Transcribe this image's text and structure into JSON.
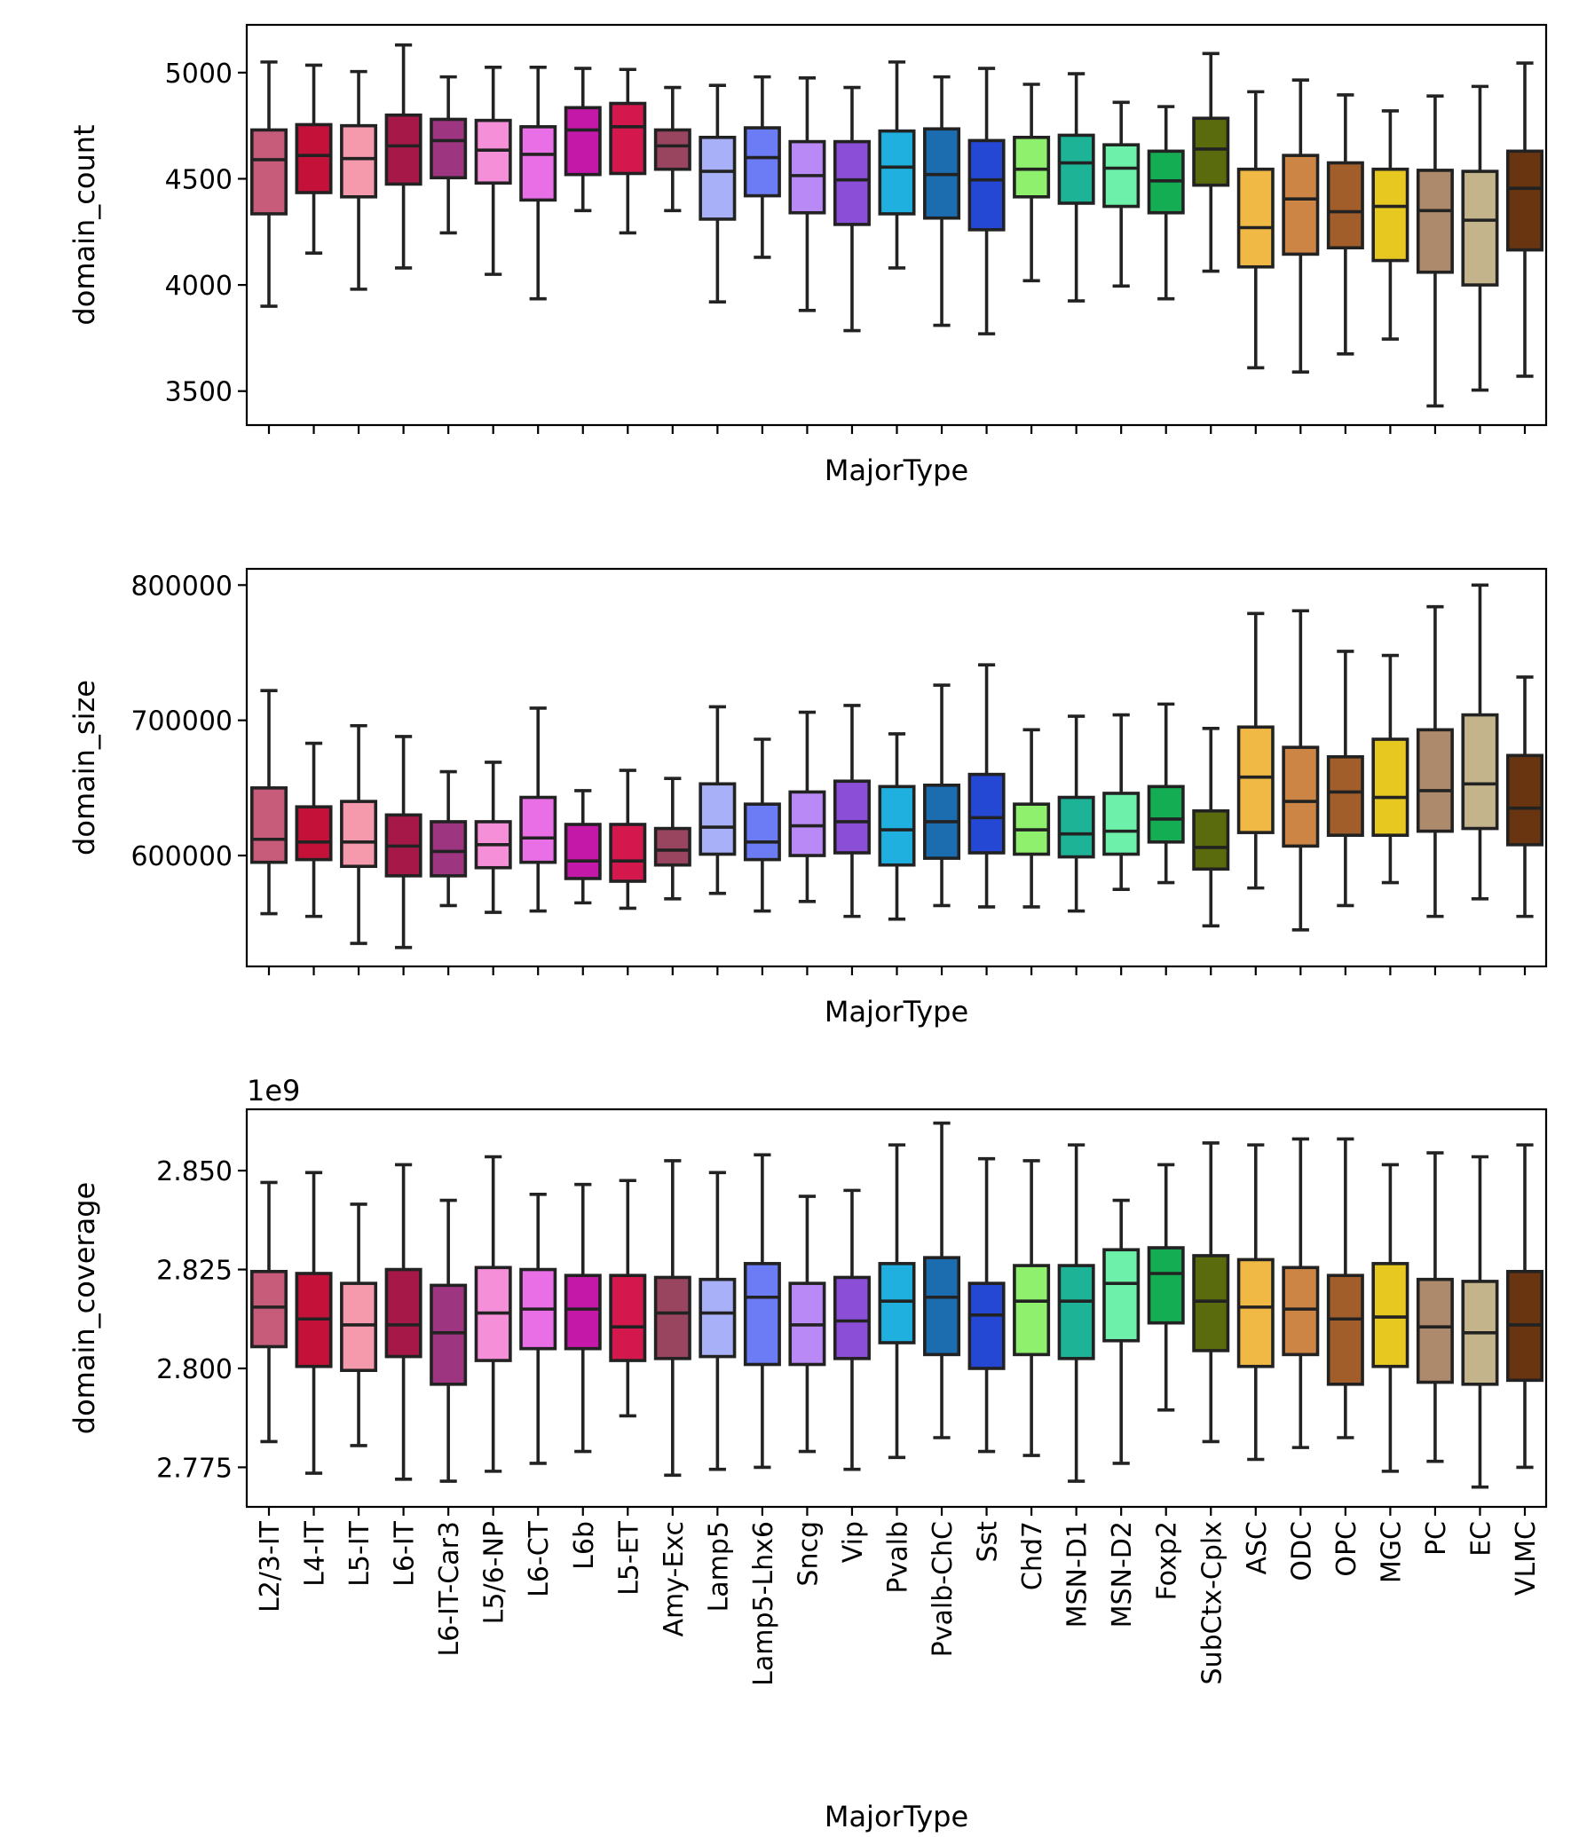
{
  "chart_data": {
    "type": "box",
    "categories": [
      "L2/3-IT",
      "L4-IT",
      "L5-IT",
      "L6-IT",
      "L6-IT-Car3",
      "L5/6-NP",
      "L6-CT",
      "L6b",
      "L5-ET",
      "Amy-Exc",
      "Lamp5",
      "Lamp5-Lhx6",
      "Sncg",
      "Vip",
      "Pvalb",
      "Pvalb-ChC",
      "Sst",
      "Chd7",
      "MSN-D1",
      "MSN-D2",
      "Foxp2",
      "SubCtx-Cplx",
      "ASC",
      "ODC",
      "OPC",
      "MGC",
      "PC",
      "EC",
      "VLMC"
    ],
    "colors": [
      "#c75b7a",
      "#c4113a",
      "#f59aad",
      "#a51848",
      "#9e3580",
      "#f590d8",
      "#e86fe6",
      "#c318a8",
      "#d4174c",
      "#9a4560",
      "#a8b1f7",
      "#6b7cf5",
      "#b98af5",
      "#8a4fd6",
      "#1fb0e0",
      "#1c6cb0",
      "#2448d4",
      "#8ef06c",
      "#1cb397",
      "#6cf0aa",
      "#15ad54",
      "#5a6b0e",
      "#f0b845",
      "#cc8545",
      "#a15e2a",
      "#e6c820",
      "#ad8a6b",
      "#c4b48c",
      "#693510"
    ],
    "xlabel": "MajorType",
    "panels": [
      {
        "ylabel": "domain_count",
        "ylim": [
          3340,
          5225
        ],
        "yticks": [
          3500,
          4000,
          4500,
          5000
        ],
        "ytick_labels": [
          "3500",
          "4000",
          "4500",
          "5000"
        ],
        "offset_text": "",
        "show_xtick_labels": false,
        "boxes": [
          {
            "whislo": 3900,
            "q1": 4335,
            "med": 4590,
            "q3": 4730,
            "whishi": 5050
          },
          {
            "whislo": 4150,
            "q1": 4435,
            "med": 4610,
            "q3": 4755,
            "whishi": 5035
          },
          {
            "whislo": 3980,
            "q1": 4415,
            "med": 4595,
            "q3": 4750,
            "whishi": 5005
          },
          {
            "whislo": 4080,
            "q1": 4475,
            "med": 4655,
            "q3": 4800,
            "whishi": 5130
          },
          {
            "whislo": 4245,
            "q1": 4505,
            "med": 4680,
            "q3": 4780,
            "whishi": 4980
          },
          {
            "whislo": 4050,
            "q1": 4480,
            "med": 4635,
            "q3": 4775,
            "whishi": 5025
          },
          {
            "whislo": 3935,
            "q1": 4400,
            "med": 4615,
            "q3": 4745,
            "whishi": 5025
          },
          {
            "whislo": 4350,
            "q1": 4520,
            "med": 4730,
            "q3": 4835,
            "whishi": 5020
          },
          {
            "whislo": 4245,
            "q1": 4525,
            "med": 4745,
            "q3": 4855,
            "whishi": 5015
          },
          {
            "whislo": 4350,
            "q1": 4545,
            "med": 4655,
            "q3": 4730,
            "whishi": 4930
          },
          {
            "whislo": 3920,
            "q1": 4310,
            "med": 4535,
            "q3": 4695,
            "whishi": 4940
          },
          {
            "whislo": 4130,
            "q1": 4420,
            "med": 4600,
            "q3": 4740,
            "whishi": 4980
          },
          {
            "whislo": 3880,
            "q1": 4340,
            "med": 4515,
            "q3": 4675,
            "whishi": 4975
          },
          {
            "whislo": 3785,
            "q1": 4285,
            "med": 4495,
            "q3": 4675,
            "whishi": 4930
          },
          {
            "whislo": 4080,
            "q1": 4335,
            "med": 4555,
            "q3": 4725,
            "whishi": 5050
          },
          {
            "whislo": 3810,
            "q1": 4315,
            "med": 4520,
            "q3": 4735,
            "whishi": 4980
          },
          {
            "whislo": 3770,
            "q1": 4260,
            "med": 4495,
            "q3": 4680,
            "whishi": 5020
          },
          {
            "whislo": 4020,
            "q1": 4415,
            "med": 4545,
            "q3": 4695,
            "whishi": 4945
          },
          {
            "whislo": 3925,
            "q1": 4385,
            "med": 4575,
            "q3": 4705,
            "whishi": 4995
          },
          {
            "whislo": 3995,
            "q1": 4370,
            "med": 4550,
            "q3": 4660,
            "whishi": 4860
          },
          {
            "whislo": 3935,
            "q1": 4340,
            "med": 4490,
            "q3": 4630,
            "whishi": 4840
          },
          {
            "whislo": 4065,
            "q1": 4470,
            "med": 4640,
            "q3": 4785,
            "whishi": 5090
          },
          {
            "whislo": 3610,
            "q1": 4085,
            "med": 4270,
            "q3": 4545,
            "whishi": 4910
          },
          {
            "whislo": 3590,
            "q1": 4145,
            "med": 4405,
            "q3": 4610,
            "whishi": 4965
          },
          {
            "whislo": 3675,
            "q1": 4175,
            "med": 4345,
            "q3": 4575,
            "whishi": 4895
          },
          {
            "whislo": 3745,
            "q1": 4115,
            "med": 4370,
            "q3": 4545,
            "whishi": 4820
          },
          {
            "whislo": 3430,
            "q1": 4060,
            "med": 4350,
            "q3": 4540,
            "whishi": 4890
          },
          {
            "whislo": 3505,
            "q1": 4000,
            "med": 4305,
            "q3": 4535,
            "whishi": 4935
          },
          {
            "whislo": 3570,
            "q1": 4165,
            "med": 4455,
            "q3": 4630,
            "whishi": 5045
          }
        ]
      },
      {
        "ylabel": "domain_size",
        "ylim": [
          518000,
          812000
        ],
        "yticks": [
          600000,
          700000,
          800000
        ],
        "ytick_labels": [
          "600000",
          "700000",
          "800000"
        ],
        "offset_text": "",
        "show_xtick_labels": false,
        "boxes": [
          {
            "whislo": 557000,
            "q1": 595000,
            "med": 612000,
            "q3": 650000,
            "whishi": 722000
          },
          {
            "whislo": 555000,
            "q1": 597000,
            "med": 610000,
            "q3": 636000,
            "whishi": 683000
          },
          {
            "whislo": 535000,
            "q1": 592000,
            "med": 610000,
            "q3": 640000,
            "whishi": 696000
          },
          {
            "whislo": 532000,
            "q1": 585000,
            "med": 607000,
            "q3": 630000,
            "whishi": 688000
          },
          {
            "whislo": 563000,
            "q1": 585000,
            "med": 603000,
            "q3": 625000,
            "whishi": 662000
          },
          {
            "whislo": 558000,
            "q1": 591000,
            "med": 608000,
            "q3": 625000,
            "whishi": 669000
          },
          {
            "whislo": 559000,
            "q1": 595000,
            "med": 613000,
            "q3": 643000,
            "whishi": 709000
          },
          {
            "whislo": 565000,
            "q1": 583000,
            "med": 596000,
            "q3": 623000,
            "whishi": 648000
          },
          {
            "whislo": 561000,
            "q1": 581000,
            "med": 596000,
            "q3": 623000,
            "whishi": 663000
          },
          {
            "whislo": 568000,
            "q1": 593000,
            "med": 604000,
            "q3": 620000,
            "whishi": 657000
          },
          {
            "whislo": 572000,
            "q1": 601000,
            "med": 621000,
            "q3": 653000,
            "whishi": 710000
          },
          {
            "whislo": 559000,
            "q1": 597000,
            "med": 610000,
            "q3": 638000,
            "whishi": 686000
          },
          {
            "whislo": 566000,
            "q1": 600000,
            "med": 622000,
            "q3": 647000,
            "whishi": 706000
          },
          {
            "whislo": 555000,
            "q1": 602000,
            "med": 625000,
            "q3": 655000,
            "whishi": 711000
          },
          {
            "whislo": 553000,
            "q1": 593000,
            "med": 619000,
            "q3": 651000,
            "whishi": 690000
          },
          {
            "whislo": 563000,
            "q1": 598000,
            "med": 625000,
            "q3": 652000,
            "whishi": 726000
          },
          {
            "whislo": 562000,
            "q1": 602000,
            "med": 628000,
            "q3": 660000,
            "whishi": 741000
          },
          {
            "whislo": 562000,
            "q1": 601000,
            "med": 619000,
            "q3": 638000,
            "whishi": 693000
          },
          {
            "whislo": 559000,
            "q1": 599000,
            "med": 616000,
            "q3": 643000,
            "whishi": 703000
          },
          {
            "whislo": 575000,
            "q1": 601000,
            "med": 618000,
            "q3": 646000,
            "whishi": 704000
          },
          {
            "whislo": 580000,
            "q1": 610000,
            "med": 627000,
            "q3": 651000,
            "whishi": 712000
          },
          {
            "whislo": 548000,
            "q1": 590000,
            "med": 606000,
            "q3": 633000,
            "whishi": 694000
          },
          {
            "whislo": 576000,
            "q1": 617000,
            "med": 658000,
            "q3": 695000,
            "whishi": 779000
          },
          {
            "whislo": 545000,
            "q1": 607000,
            "med": 640000,
            "q3": 680000,
            "whishi": 781000
          },
          {
            "whislo": 563000,
            "q1": 615000,
            "med": 647000,
            "q3": 673000,
            "whishi": 751000
          },
          {
            "whislo": 580000,
            "q1": 615000,
            "med": 643000,
            "q3": 686000,
            "whishi": 748000
          },
          {
            "whislo": 555000,
            "q1": 618000,
            "med": 648000,
            "q3": 693000,
            "whishi": 784000
          },
          {
            "whislo": 568000,
            "q1": 620000,
            "med": 653000,
            "q3": 704000,
            "whishi": 800000
          },
          {
            "whislo": 555000,
            "q1": 608000,
            "med": 635000,
            "q3": 674000,
            "whishi": 732000
          }
        ]
      },
      {
        "ylabel": "domain_coverage",
        "ylim": [
          2.765,
          2.8655
        ],
        "yticks": [
          2.775,
          2.8,
          2.825,
          2.85
        ],
        "ytick_labels": [
          "2.775",
          "2.800",
          "2.825",
          "2.850"
        ],
        "offset_text": "1e9",
        "show_xtick_labels": true,
        "boxes": [
          {
            "whislo": 2.7815,
            "q1": 2.8055,
            "med": 2.8155,
            "q3": 2.8245,
            "whishi": 2.847
          },
          {
            "whislo": 2.7735,
            "q1": 2.8005,
            "med": 2.8125,
            "q3": 2.824,
            "whishi": 2.8495
          },
          {
            "whislo": 2.7805,
            "q1": 2.7995,
            "med": 2.811,
            "q3": 2.8215,
            "whishi": 2.8415
          },
          {
            "whislo": 2.772,
            "q1": 2.803,
            "med": 2.811,
            "q3": 2.825,
            "whishi": 2.8515
          },
          {
            "whislo": 2.7715,
            "q1": 2.796,
            "med": 2.809,
            "q3": 2.821,
            "whishi": 2.8425
          },
          {
            "whislo": 2.774,
            "q1": 2.802,
            "med": 2.814,
            "q3": 2.8255,
            "whishi": 2.8535
          },
          {
            "whislo": 2.776,
            "q1": 2.805,
            "med": 2.815,
            "q3": 2.825,
            "whishi": 2.844
          },
          {
            "whislo": 2.779,
            "q1": 2.805,
            "med": 2.815,
            "q3": 2.8235,
            "whishi": 2.8465
          },
          {
            "whislo": 2.788,
            "q1": 2.802,
            "med": 2.8105,
            "q3": 2.8235,
            "whishi": 2.8475
          },
          {
            "whislo": 2.773,
            "q1": 2.8025,
            "med": 2.814,
            "q3": 2.823,
            "whishi": 2.8525
          },
          {
            "whislo": 2.7745,
            "q1": 2.803,
            "med": 2.814,
            "q3": 2.8225,
            "whishi": 2.8495
          },
          {
            "whislo": 2.775,
            "q1": 2.801,
            "med": 2.818,
            "q3": 2.8265,
            "whishi": 2.854
          },
          {
            "whislo": 2.779,
            "q1": 2.801,
            "med": 2.811,
            "q3": 2.8215,
            "whishi": 2.8435
          },
          {
            "whislo": 2.7745,
            "q1": 2.8025,
            "med": 2.812,
            "q3": 2.823,
            "whishi": 2.845
          },
          {
            "whislo": 2.7775,
            "q1": 2.8065,
            "med": 2.817,
            "q3": 2.8265,
            "whishi": 2.8565
          },
          {
            "whislo": 2.7825,
            "q1": 2.8035,
            "med": 2.818,
            "q3": 2.828,
            "whishi": 2.862
          },
          {
            "whislo": 2.779,
            "q1": 2.8,
            "med": 2.8135,
            "q3": 2.8215,
            "whishi": 2.853
          },
          {
            "whislo": 2.778,
            "q1": 2.8035,
            "med": 2.817,
            "q3": 2.826,
            "whishi": 2.8525
          },
          {
            "whislo": 2.7715,
            "q1": 2.8025,
            "med": 2.817,
            "q3": 2.826,
            "whishi": 2.8565
          },
          {
            "whislo": 2.776,
            "q1": 2.807,
            "med": 2.8215,
            "q3": 2.83,
            "whishi": 2.8425
          },
          {
            "whislo": 2.7895,
            "q1": 2.8115,
            "med": 2.824,
            "q3": 2.8305,
            "whishi": 2.8515
          },
          {
            "whislo": 2.7815,
            "q1": 2.8045,
            "med": 2.817,
            "q3": 2.8285,
            "whishi": 2.857
          },
          {
            "whislo": 2.777,
            "q1": 2.8005,
            "med": 2.8155,
            "q3": 2.8275,
            "whishi": 2.8565
          },
          {
            "whislo": 2.78,
            "q1": 2.8035,
            "med": 2.815,
            "q3": 2.8255,
            "whishi": 2.858
          },
          {
            "whislo": 2.7825,
            "q1": 2.796,
            "med": 2.8125,
            "q3": 2.8235,
            "whishi": 2.858
          },
          {
            "whislo": 2.774,
            "q1": 2.8005,
            "med": 2.813,
            "q3": 2.8265,
            "whishi": 2.8515
          },
          {
            "whislo": 2.7765,
            "q1": 2.7965,
            "med": 2.8105,
            "q3": 2.8225,
            "whishi": 2.8545
          },
          {
            "whislo": 2.77,
            "q1": 2.796,
            "med": 2.809,
            "q3": 2.822,
            "whishi": 2.8535
          },
          {
            "whislo": 2.775,
            "q1": 2.797,
            "med": 2.811,
            "q3": 2.8245,
            "whishi": 2.8565
          }
        ]
      }
    ]
  }
}
